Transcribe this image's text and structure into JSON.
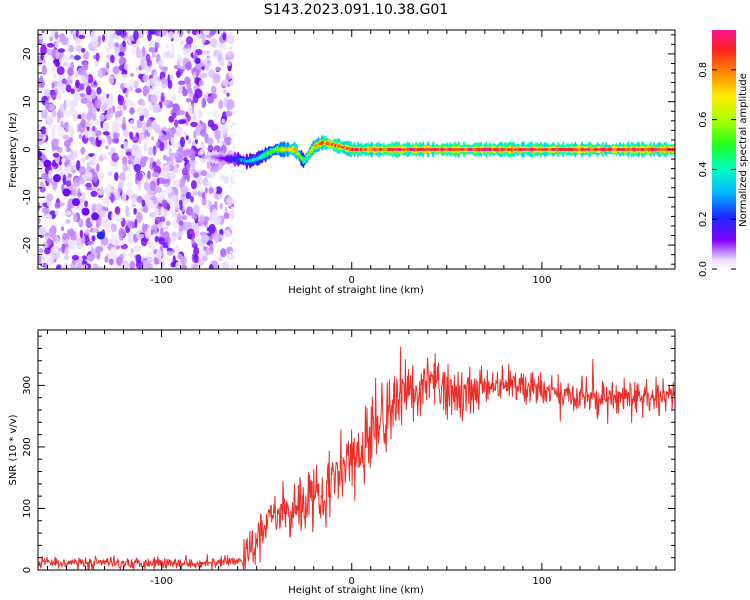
{
  "title": "S143.2023.091.10.38.G01",
  "chart_data": [
    {
      "type": "heatmap",
      "xlabel": "Height of straight line (km)",
      "ylabel": "Frequency (Hz)",
      "xlim": [
        -165,
        170
      ],
      "ylim": [
        -25,
        25
      ],
      "xticks": [
        -100,
        0,
        100
      ],
      "yticks": [
        -20,
        -10,
        0,
        10,
        20
      ],
      "colorbar": {
        "label": "Normalized spectral amplitude",
        "range": [
          0,
          0.96
        ],
        "ticks": [
          0.0,
          0.2,
          0.4,
          0.6,
          0.8
        ],
        "colormap": "rainbow"
      },
      "noise_region_x": [
        -165,
        -63
      ],
      "ridge": {
        "x": [
          -75,
          -65,
          -60,
          -55,
          -50,
          -45,
          -40,
          -35,
          -30,
          -25,
          -20,
          -15,
          -10,
          -5,
          0,
          10,
          20,
          40,
          60,
          80,
          100,
          120,
          140,
          160,
          170
        ],
        "y": [
          -1.5,
          -2,
          -2,
          -2.5,
          -2,
          -1,
          0,
          0,
          0,
          -2.5,
          0.5,
          1.5,
          1,
          0.5,
          0,
          0,
          0,
          0,
          0,
          0,
          0,
          0,
          0,
          0,
          0
        ],
        "amplitude": [
          0.05,
          0.15,
          0.25,
          0.35,
          0.4,
          0.5,
          0.6,
          0.7,
          0.8,
          0.5,
          0.75,
          0.85,
          0.85,
          0.9,
          0.9,
          0.9,
          0.95,
          0.95,
          0.95,
          0.95,
          0.95,
          0.95,
          0.95,
          0.95,
          0.95
        ]
      },
      "grid": false
    },
    {
      "type": "line",
      "xlabel": "Height of straight line (km)",
      "ylabel": "SNR (10 * v/v)",
      "xlim": [
        -165,
        170
      ],
      "ylim": [
        0,
        390
      ],
      "xticks": [
        -100,
        0,
        100
      ],
      "yticks": [
        0,
        100,
        200,
        300
      ],
      "series": [
        {
          "color": "#e8302a",
          "x": [
            -165,
            -140,
            -120,
            -100,
            -80,
            -65,
            -57,
            -52,
            -48,
            -44,
            -40,
            -35,
            -30,
            -25,
            -20,
            -15,
            -10,
            -5,
            0,
            5,
            10,
            15,
            20,
            25,
            30,
            35,
            40,
            45,
            50,
            60,
            70,
            80,
            90,
            100,
            110,
            120,
            130,
            140,
            150,
            160,
            170
          ],
          "values": [
            12,
            12,
            12,
            12,
            12,
            12,
            15,
            35,
            55,
            75,
            85,
            95,
            105,
            115,
            125,
            130,
            145,
            160,
            175,
            195,
            215,
            240,
            260,
            280,
            290,
            295,
            300,
            300,
            295,
            290,
            295,
            300,
            295,
            290,
            285,
            280,
            280,
            280,
            280,
            280,
            285
          ]
        }
      ],
      "grid": false
    }
  ]
}
